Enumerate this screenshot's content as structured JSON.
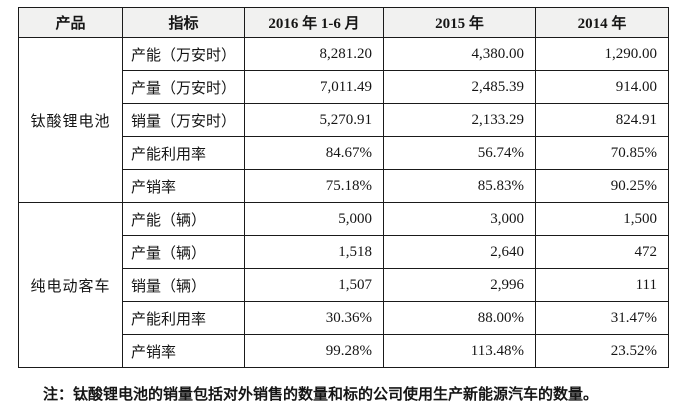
{
  "table": {
    "headers": [
      "产品",
      "指标",
      "2016 年 1-6 月",
      "2015 年",
      "2014 年"
    ],
    "groups": [
      {
        "product": "钛酸锂电池",
        "rows": [
          {
            "indicator": "产能（万安时）",
            "values": [
              "8,281.20",
              "4,380.00",
              "1,290.00"
            ]
          },
          {
            "indicator": "产量（万安时）",
            "values": [
              "7,011.49",
              "2,485.39",
              "914.00"
            ]
          },
          {
            "indicator": "销量（万安时）",
            "values": [
              "5,270.91",
              "2,133.29",
              "824.91"
            ]
          },
          {
            "indicator": "产能利用率",
            "values": [
              "84.67%",
              "56.74%",
              "70.85%"
            ]
          },
          {
            "indicator": "产销率",
            "values": [
              "75.18%",
              "85.83%",
              "90.25%"
            ]
          }
        ]
      },
      {
        "product": "纯电动客车",
        "rows": [
          {
            "indicator": "产能（辆）",
            "values": [
              "5,000",
              "3,000",
              "1,500"
            ]
          },
          {
            "indicator": "产量（辆）",
            "values": [
              "1,518",
              "2,640",
              "472"
            ]
          },
          {
            "indicator": "销量（辆）",
            "values": [
              "1,507",
              "2,996",
              "111"
            ]
          },
          {
            "indicator": "产能利用率",
            "values": [
              "30.36%",
              "88.00%",
              "31.47%"
            ]
          },
          {
            "indicator": "产销率",
            "values": [
              "99.28%",
              "113.48%",
              "23.52%"
            ]
          }
        ]
      }
    ]
  },
  "note": "注：钛酸锂电池的销量包括对外销售的数量和标的公司使用生产新能源汽车的数量。",
  "colors": {
    "header_bg": "#f1f1f0",
    "border": "#1a1a1a",
    "text": "#151515"
  }
}
